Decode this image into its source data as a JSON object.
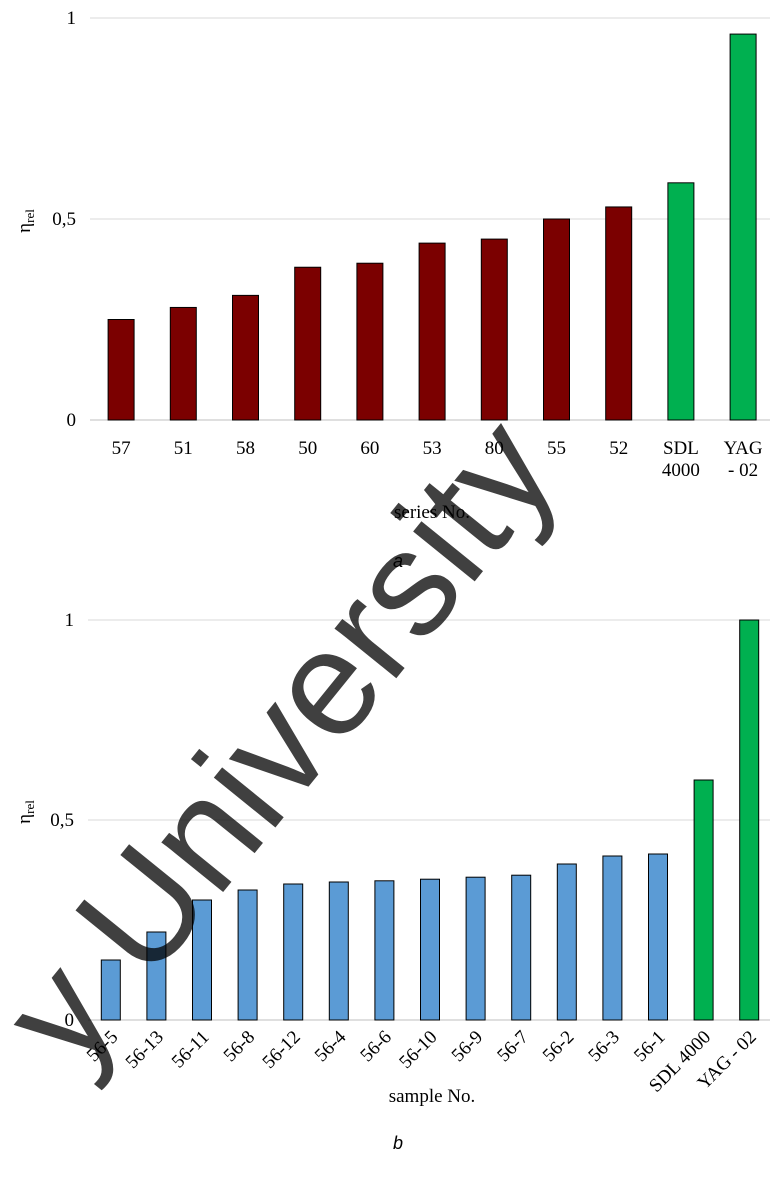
{
  "chart_data": [
    {
      "type": "bar",
      "panel_label": "a",
      "xlabel": "series No.",
      "ylabel": "η",
      "ylabel_sub": "rel",
      "ylim": [
        0,
        1
      ],
      "yticks": [
        "0",
        "0,5",
        "1"
      ],
      "grid": true,
      "categories": [
        [
          "57"
        ],
        [
          "51"
        ],
        [
          "58"
        ],
        [
          "50"
        ],
        [
          "60"
        ],
        [
          "53"
        ],
        [
          "80"
        ],
        [
          "55"
        ],
        [
          "52"
        ],
        [
          "SDL",
          "4000"
        ],
        [
          "YAG",
          "- 02"
        ]
      ],
      "values": [
        0.25,
        0.28,
        0.31,
        0.38,
        0.39,
        0.44,
        0.45,
        0.5,
        0.53,
        0.59,
        0.96
      ],
      "colors": [
        "#7b0000",
        "#7b0000",
        "#7b0000",
        "#7b0000",
        "#7b0000",
        "#7b0000",
        "#7b0000",
        "#7b0000",
        "#7b0000",
        "#00b050",
        "#00b050"
      ]
    },
    {
      "type": "bar",
      "panel_label": "b",
      "xlabel": "sample No.",
      "ylabel": "η",
      "ylabel_sub": "rel",
      "ylim": [
        0,
        1
      ],
      "yticks": [
        "0",
        "0,5",
        "1"
      ],
      "grid": true,
      "categories": [
        "56-5",
        "56-13",
        "56-11",
        "56-8",
        "56-12",
        "56-4",
        "56-6",
        "56-10",
        "56-9",
        "56-7",
        "56-2",
        "56-3",
        "56-1",
        "SDL 4000",
        "YAG - 02"
      ],
      "values": [
        0.15,
        0.22,
        0.3,
        0.325,
        0.34,
        0.345,
        0.348,
        0.352,
        0.357,
        0.362,
        0.39,
        0.41,
        0.415,
        0.6,
        1.0
      ],
      "colors": [
        "#5b9bd5",
        "#5b9bd5",
        "#5b9bd5",
        "#5b9bd5",
        "#5b9bd5",
        "#5b9bd5",
        "#5b9bd5",
        "#5b9bd5",
        "#5b9bd5",
        "#5b9bd5",
        "#5b9bd5",
        "#5b9bd5",
        "#5b9bd5",
        "#00b050",
        "#00b050"
      ]
    }
  ],
  "watermark": {
    "text": "y University",
    "color": "#000000"
  }
}
